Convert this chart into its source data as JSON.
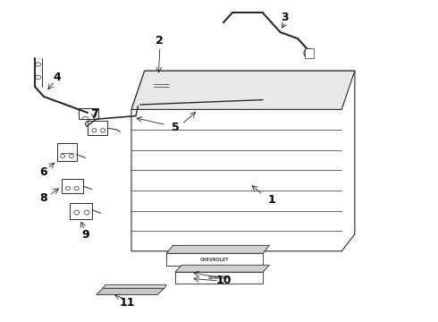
{
  "background_color": "#ffffff",
  "line_color": "#2a2a2a",
  "label_color": "#000000",
  "label_fontsize": 9,
  "label_fontweight": "bold",
  "fig_width": 4.9,
  "fig_height": 3.6,
  "dpi": 100
}
